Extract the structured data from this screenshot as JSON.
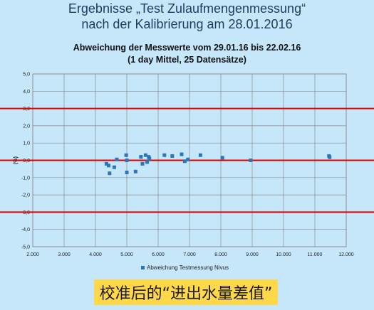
{
  "header": {
    "title_line1": "Ergebnisse „Test Zulaufmengenmessung“",
    "title_line2": "nach der Kalibrierung am 28.01.2016"
  },
  "banner": {
    "text": "校准后的“进出水量差值”"
  },
  "colors": {
    "background": "#c6e7fa",
    "marker": "#2e75b6",
    "reference_line": "#e00000",
    "banner": "#ffd84a"
  },
  "chart_data": {
    "type": "scatter",
    "title": "Abweichung der Messwerte vom 29.01.16 bis 22.02.16",
    "subtitle": "(1 day Mittel, 25 Datensätze)",
    "ylabel": "(%)",
    "xlim": [
      2.0,
      12.0
    ],
    "ylim": [
      -5.0,
      5.0
    ],
    "x_ticks": [
      "2.000",
      "3.000",
      "4.000",
      "5.000",
      "6.000",
      "7.000",
      "8.000",
      "9.000",
      "10.000",
      "11.000",
      "12.000"
    ],
    "y_ticks": [
      "5,0",
      "4,0",
      "3,0",
      "2,0",
      "1,0",
      "0,0",
      "-1,0",
      "-2,0",
      "-3,0",
      "-4,0",
      "-5,0"
    ],
    "reference_lines": [
      3.0,
      0.0,
      -3.0
    ],
    "grid": true,
    "legend_position": "bottom",
    "series": [
      {
        "name": "Abweichung Testmessung Nivus",
        "points": [
          [
            4.35,
            -0.2
          ],
          [
            4.42,
            -0.3
          ],
          [
            4.45,
            -0.75
          ],
          [
            4.6,
            -0.4
          ],
          [
            4.68,
            0.05
          ],
          [
            4.98,
            0.3
          ],
          [
            5.0,
            -0.7
          ],
          [
            5.0,
            0.0
          ],
          [
            5.28,
            -0.65
          ],
          [
            5.45,
            0.2
          ],
          [
            5.5,
            -0.2
          ],
          [
            5.6,
            0.3
          ],
          [
            5.65,
            -0.1
          ],
          [
            5.7,
            0.2
          ],
          [
            5.72,
            0.1
          ],
          [
            6.2,
            0.3
          ],
          [
            6.45,
            0.25
          ],
          [
            6.75,
            0.35
          ],
          [
            6.85,
            -0.05
          ],
          [
            6.95,
            0.05
          ],
          [
            7.35,
            0.3
          ],
          [
            8.05,
            0.15
          ],
          [
            8.95,
            0.0
          ],
          [
            11.45,
            0.25
          ],
          [
            11.47,
            0.18
          ]
        ]
      }
    ]
  }
}
